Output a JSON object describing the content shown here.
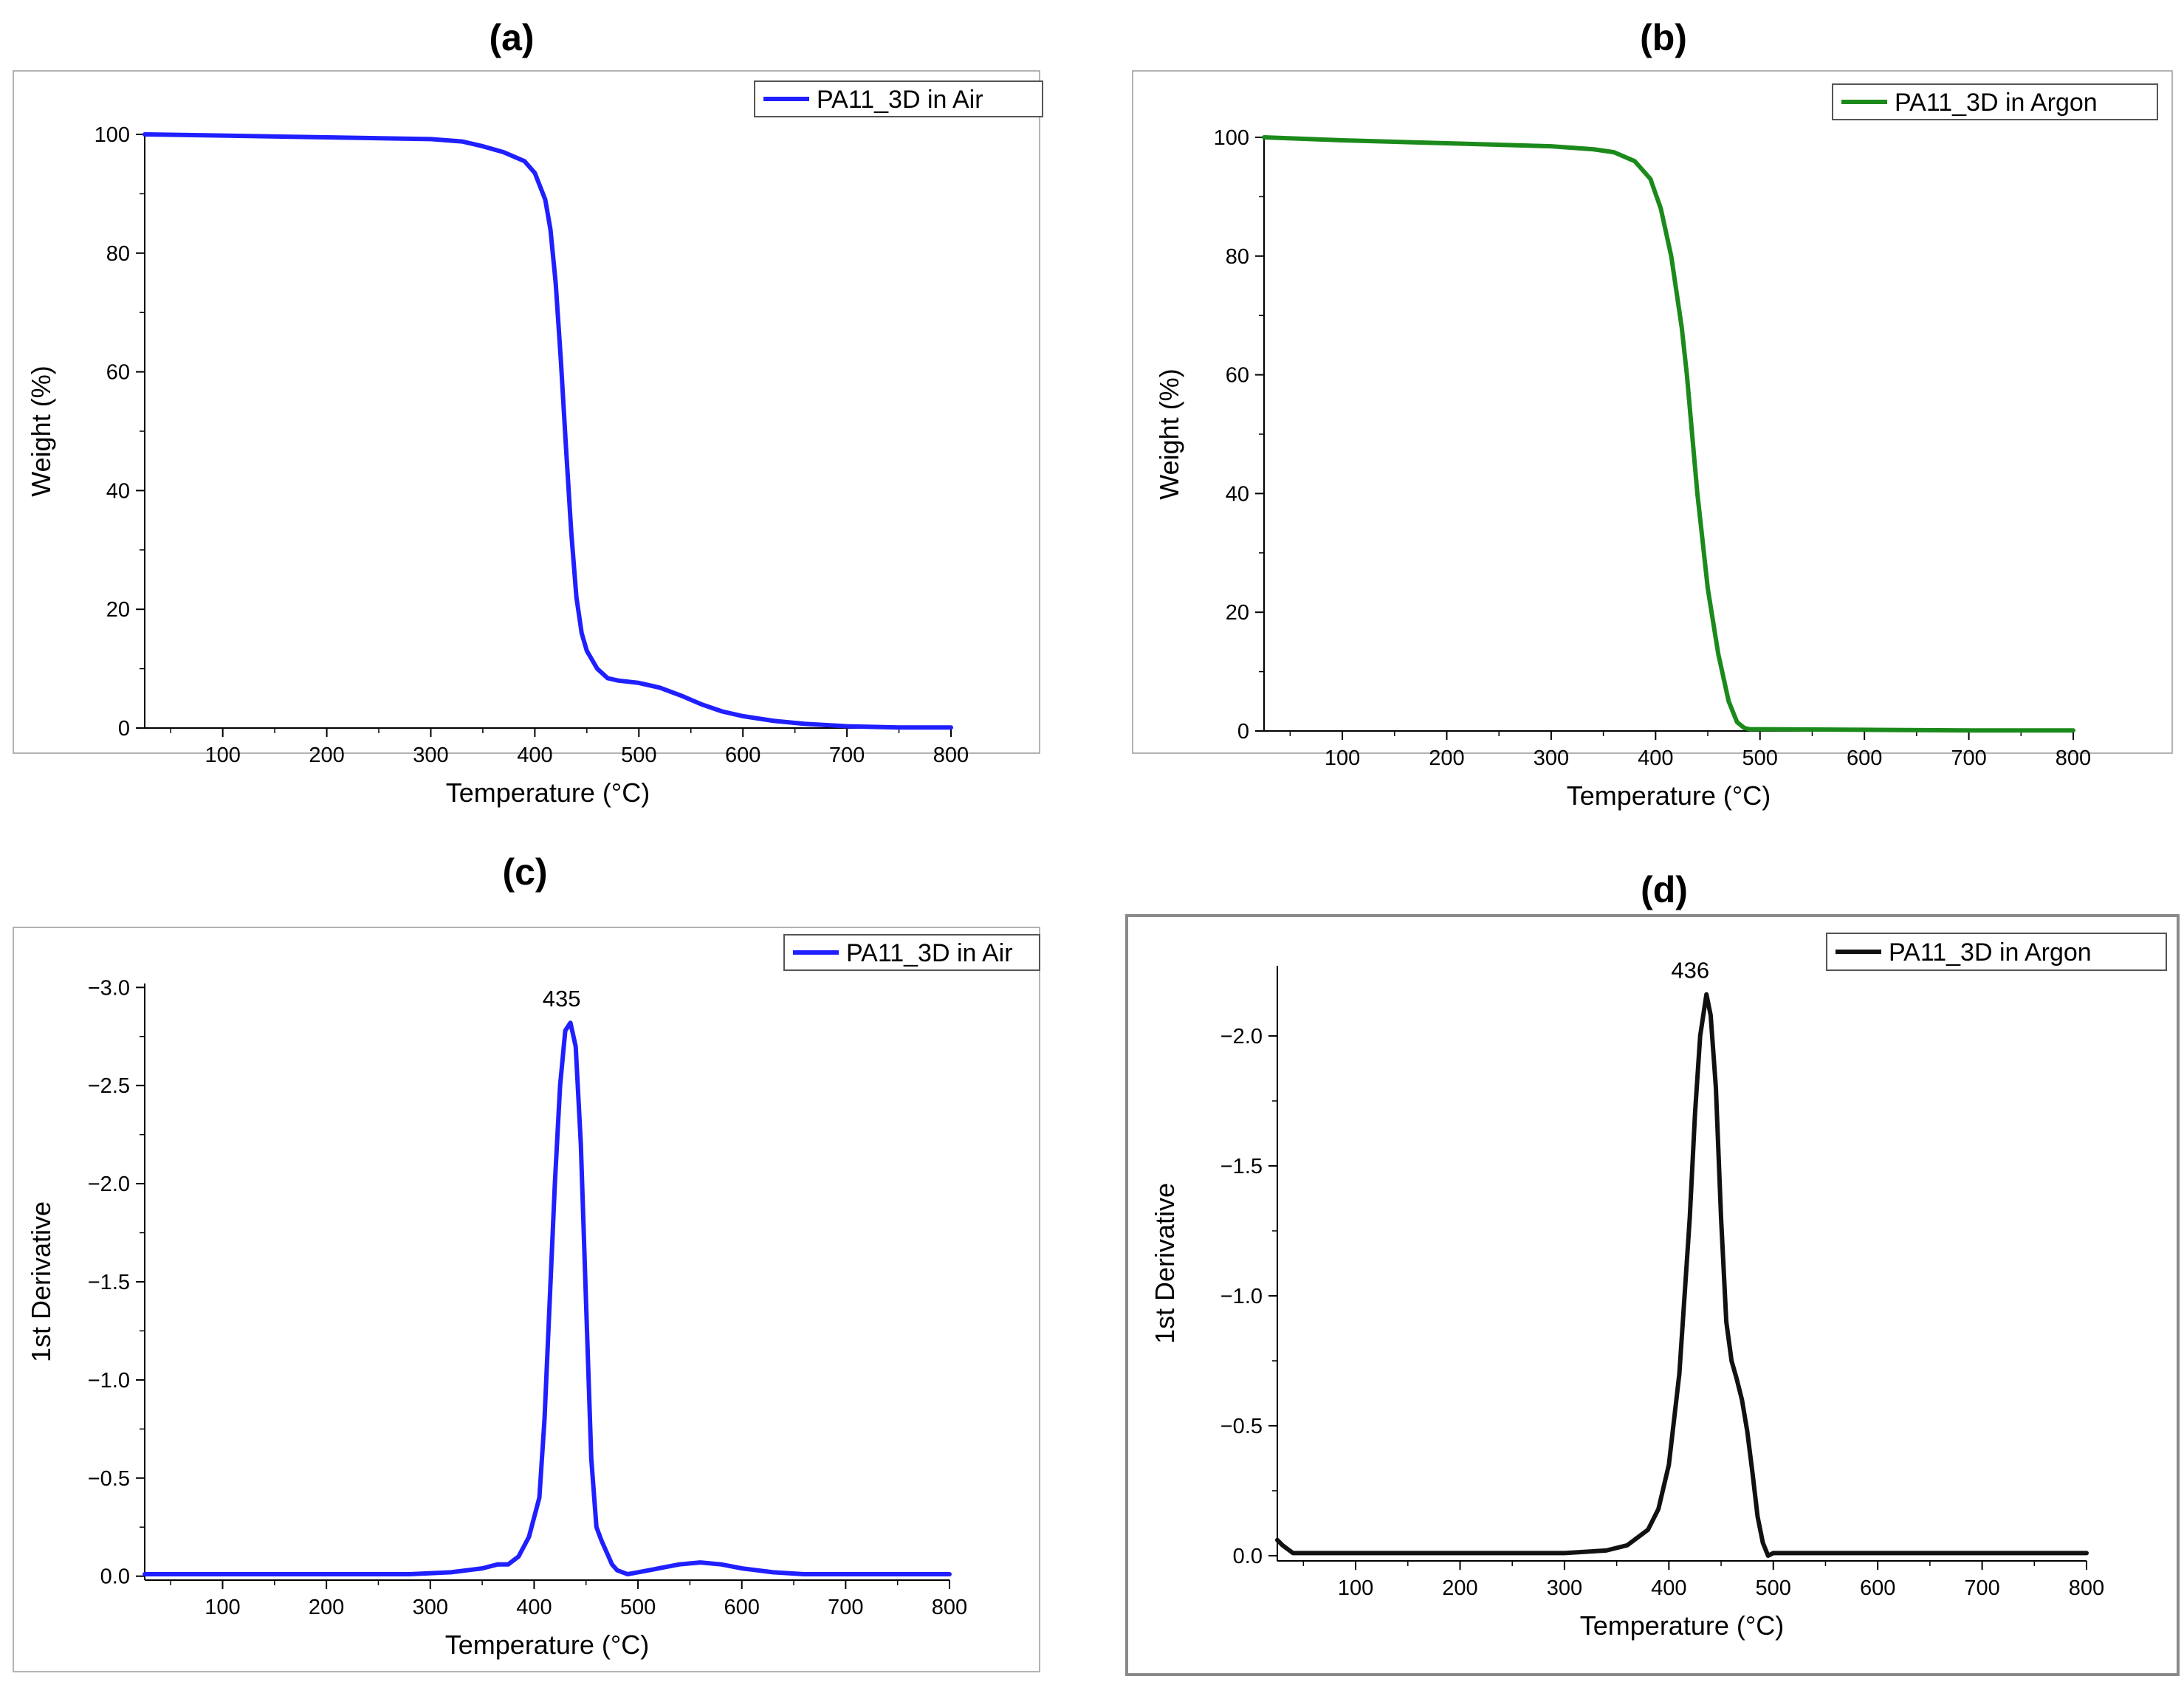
{
  "chart_data": [
    {
      "id": "a",
      "panel_label": "(a)",
      "type": "line",
      "xlabel": "Temperature (°C)",
      "ylabel": "Weight (%)",
      "xlim": [
        25,
        800
      ],
      "ylim": [
        0,
        100
      ],
      "xticks": [
        "100",
        "200",
        "300",
        "400",
        "500",
        "600",
        "700",
        "800"
      ],
      "yticks": [
        "0",
        "20",
        "40",
        "60",
        "80",
        "100"
      ],
      "legend": "PA11_3D in Air",
      "legend_position": "top-right",
      "line_color": "#1f1fff",
      "series": [
        {
          "name": "PA11_3D in Air",
          "x": [
            25,
            100,
            200,
            300,
            330,
            350,
            370,
            390,
            400,
            410,
            415,
            420,
            425,
            430,
            435,
            440,
            445,
            450,
            460,
            470,
            480,
            500,
            520,
            540,
            560,
            580,
            600,
            630,
            660,
            700,
            750,
            800
          ],
          "y": [
            100,
            99.8,
            99.5,
            99.2,
            98.8,
            98.0,
            97.0,
            95.5,
            93.5,
            89.0,
            84.0,
            75.0,
            62.0,
            47.0,
            33.0,
            22.0,
            16.0,
            13.0,
            10.0,
            8.4,
            8.0,
            7.6,
            6.8,
            5.5,
            4.0,
            2.8,
            2.0,
            1.2,
            0.7,
            0.3,
            0.1,
            0.1
          ]
        }
      ]
    },
    {
      "id": "b",
      "panel_label": "(b)",
      "type": "line",
      "xlabel": "Temperature (°C)",
      "ylabel": "Weight (%)",
      "xlim": [
        25,
        800
      ],
      "ylim": [
        0,
        100
      ],
      "xticks": [
        "100",
        "200",
        "300",
        "400",
        "500",
        "600",
        "700",
        "800"
      ],
      "yticks": [
        "0",
        "20",
        "40",
        "60",
        "80",
        "100"
      ],
      "legend": "PA11_3D in Argon",
      "legend_position": "top-right",
      "line_color": "#1b8a1b",
      "series": [
        {
          "name": "PA11_3D in Argon",
          "x": [
            25,
            100,
            200,
            300,
            340,
            360,
            380,
            395,
            405,
            415,
            425,
            430,
            435,
            440,
            445,
            450,
            460,
            470,
            478,
            485,
            490,
            500,
            600,
            700,
            800
          ],
          "y": [
            100,
            99.5,
            99.0,
            98.5,
            98.0,
            97.5,
            96.0,
            93.0,
            88.0,
            80.0,
            68.0,
            60.0,
            50.0,
            40.0,
            32.0,
            24.0,
            13.0,
            5.0,
            1.5,
            0.5,
            0.3,
            0.3,
            0.2,
            0.1,
            0.1
          ]
        }
      ]
    },
    {
      "id": "c",
      "panel_label": "(c)",
      "type": "line",
      "xlabel": "Temperature (°C)",
      "ylabel": "1st Derivative",
      "xlim": [
        25,
        800
      ],
      "ylim": [
        0.02,
        -3.02
      ],
      "xticks": [
        "100",
        "200",
        "300",
        "400",
        "500",
        "600",
        "700",
        "800"
      ],
      "yticks": [
        "0.0",
        "−0.5",
        "−1.0",
        "−1.5",
        "−2.0",
        "−2.5",
        "−3.0"
      ],
      "legend": "PA11_3D in Air",
      "legend_position": "top-right",
      "line_color": "#1f1fff",
      "peak_annotation": "435",
      "peak": {
        "x": 435,
        "y": -2.82
      },
      "series": [
        {
          "name": "PA11_3D in Air",
          "x": [
            25,
            100,
            200,
            280,
            320,
            350,
            365,
            375,
            385,
            395,
            405,
            410,
            415,
            420,
            425,
            430,
            435,
            440,
            445,
            450,
            455,
            460,
            465,
            470,
            475,
            480,
            490,
            500,
            520,
            540,
            560,
            580,
            600,
            630,
            660,
            700,
            750,
            800
          ],
          "y": [
            -0.01,
            -0.01,
            -0.01,
            -0.01,
            -0.02,
            -0.04,
            -0.06,
            -0.06,
            -0.1,
            -0.2,
            -0.4,
            -0.8,
            -1.4,
            -2.0,
            -2.5,
            -2.78,
            -2.82,
            -2.7,
            -2.2,
            -1.4,
            -0.6,
            -0.25,
            -0.18,
            -0.12,
            -0.06,
            -0.03,
            -0.01,
            -0.02,
            -0.04,
            -0.06,
            -0.07,
            -0.06,
            -0.04,
            -0.02,
            -0.01,
            -0.01,
            -0.01,
            -0.01
          ]
        }
      ]
    },
    {
      "id": "d",
      "panel_label": "(d)",
      "type": "line",
      "xlabel": "Temperature (°C)",
      "ylabel": "1st Derivative",
      "xlim": [
        25,
        800
      ],
      "ylim": [
        0.02,
        -2.27
      ],
      "xticks": [
        "100",
        "200",
        "300",
        "400",
        "500",
        "600",
        "700",
        "800"
      ],
      "yticks": [
        "0.0",
        "−0.5",
        "−1.0",
        "−1.5",
        "−2.0"
      ],
      "legend": "PA11_3D in Argon",
      "legend_position": "top-right",
      "line_color": "#111111",
      "peak_annotation": "436",
      "peak": {
        "x": 436,
        "y": -2.16
      },
      "series": [
        {
          "name": "PA11_3D in Argon",
          "x": [
            25,
            30,
            40,
            50,
            100,
            200,
            300,
            340,
            360,
            380,
            390,
            400,
            410,
            420,
            425,
            430,
            436,
            440,
            445,
            450,
            455,
            460,
            465,
            470,
            475,
            480,
            485,
            490,
            495,
            500,
            510,
            600,
            700,
            800
          ],
          "y": [
            -0.06,
            -0.04,
            -0.01,
            -0.01,
            -0.01,
            -0.01,
            -0.01,
            -0.02,
            -0.04,
            -0.1,
            -0.18,
            -0.35,
            -0.7,
            -1.3,
            -1.7,
            -2.0,
            -2.16,
            -2.08,
            -1.8,
            -1.3,
            -0.9,
            -0.75,
            -0.68,
            -0.6,
            -0.48,
            -0.32,
            -0.15,
            -0.05,
            0.0,
            -0.01,
            -0.01,
            -0.01,
            -0.01,
            -0.01
          ]
        }
      ]
    }
  ]
}
